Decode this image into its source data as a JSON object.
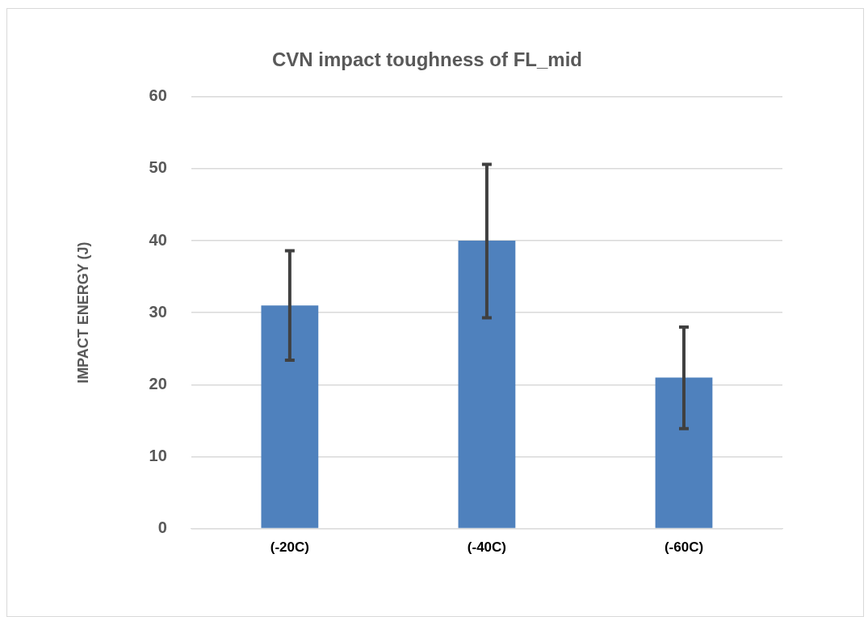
{
  "chart_data": {
    "type": "bar",
    "title": "CVN impact toughness of FL_mid",
    "ylabel": "IMPACT ENERGY (J)",
    "categories": [
      "(-20C)",
      "(-40C)",
      "(-60C)"
    ],
    "values": [
      31,
      40,
      21
    ],
    "errors": [
      [
        23.4,
        38.6
      ],
      [
        29.3,
        50.6
      ],
      [
        13.9,
        28
      ]
    ],
    "color": "#4f81bd",
    "ylim": [
      0,
      60
    ],
    "yticks": [
      0,
      10,
      20,
      30,
      40,
      50,
      60
    ],
    "grid": "y",
    "legend": false
  }
}
